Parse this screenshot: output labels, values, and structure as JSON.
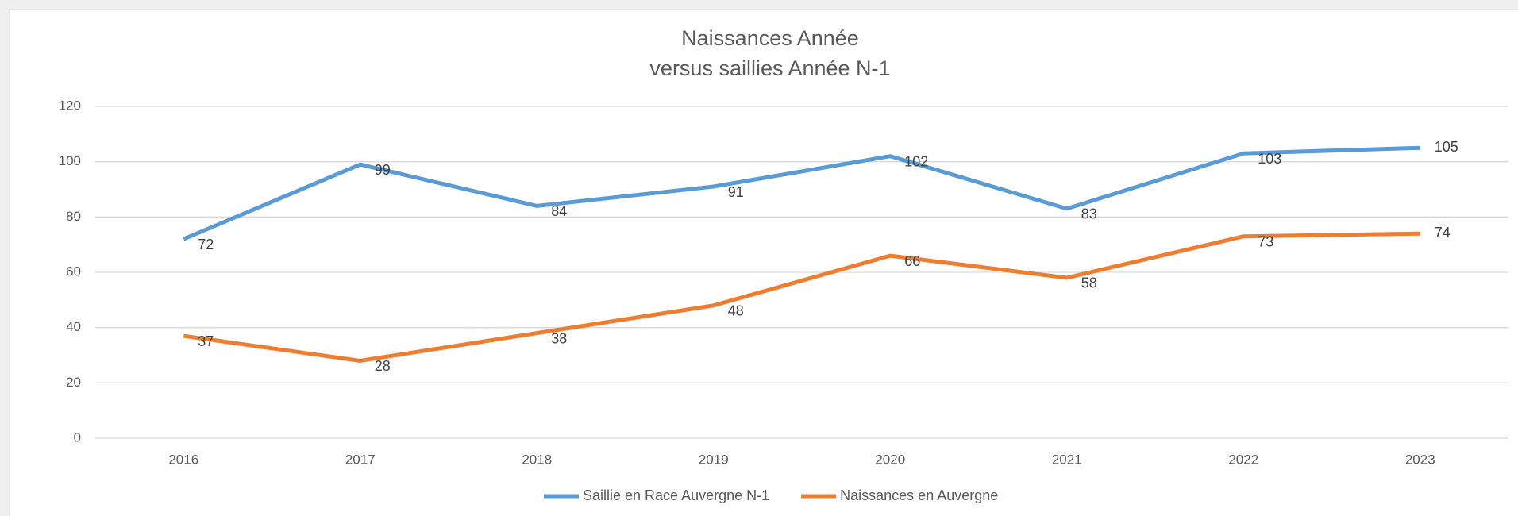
{
  "chart_data": {
    "type": "line",
    "title": "Naissances Année",
    "subtitle": "versus saillies Année N-1",
    "categories": [
      "2016",
      "2017",
      "2018",
      "2019",
      "2020",
      "2021",
      "2022",
      "2023"
    ],
    "series": [
      {
        "name": "Saillie en Race Auvergne N-1",
        "color": "#5b9bd5",
        "values": [
          72,
          99,
          84,
          91,
          102,
          83,
          103,
          105
        ]
      },
      {
        "name": "Naissances en Auvergne",
        "color": "#ed7d31",
        "values": [
          37,
          28,
          38,
          48,
          66,
          58,
          73,
          74
        ]
      }
    ],
    "ylim": [
      0,
      120
    ],
    "yticks": [
      0,
      20,
      40,
      60,
      80,
      100,
      120
    ],
    "grid": true,
    "legend": "bottom"
  }
}
